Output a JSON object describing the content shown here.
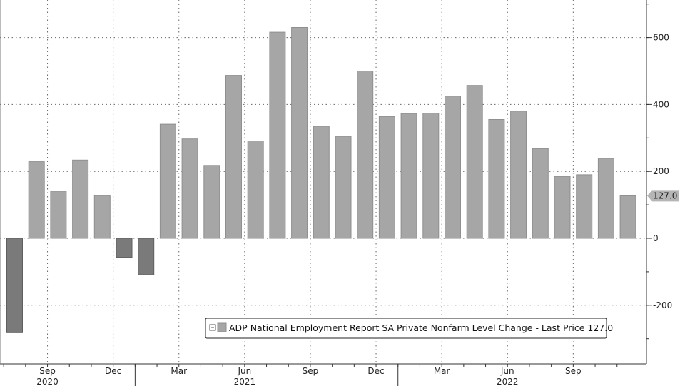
{
  "chart_data": {
    "type": "bar",
    "title": "",
    "xlabel": "",
    "ylabel": "",
    "ylim": [
      -370,
      700
    ],
    "y_ticks": [
      600,
      400,
      200,
      0,
      -200
    ],
    "y_tick_labels": [
      "600",
      "400",
      "200",
      "0",
      "-200"
    ],
    "grid": true,
    "legend_position": "bottom-right",
    "categories": [
      "2020-07",
      "2020-08",
      "2020-09",
      "2020-10",
      "2020-11",
      "2020-12",
      "2021-01",
      "2021-02",
      "2021-03",
      "2021-04",
      "2021-05",
      "2021-06",
      "2021-07",
      "2021-08",
      "2021-09",
      "2021-10",
      "2021-11",
      "2021-12",
      "2022-01",
      "2022-02",
      "2022-03",
      "2022-04",
      "2022-05",
      "2022-06",
      "2022-07",
      "2022-08",
      "2022-09",
      "2022-10",
      "2022-11"
    ],
    "series": [
      {
        "name": "ADP National Employment Report SA Private Nonfarm Level Change - Last Price 127.0",
        "values": [
          -282,
          229,
          141,
          234,
          128,
          -57,
          -109,
          341,
          297,
          218,
          487,
          291,
          616,
          630,
          335,
          305,
          500,
          364,
          373,
          374,
          425,
          457,
          355,
          380,
          268,
          185,
          190,
          239,
          127
        ]
      }
    ],
    "x_month_labels": [
      {
        "label": "Sep",
        "category": "2020-09"
      },
      {
        "label": "Dec",
        "category": "2020-12"
      },
      {
        "label": "Mar",
        "category": "2021-03"
      },
      {
        "label": "Jun",
        "category": "2021-06"
      },
      {
        "label": "Sep",
        "category": "2021-09"
      },
      {
        "label": "Dec",
        "category": "2021-12"
      },
      {
        "label": "Mar",
        "category": "2022-03"
      },
      {
        "label": "Jun",
        "category": "2022-06"
      },
      {
        "label": "Sep",
        "category": "2022-09"
      }
    ],
    "x_year_labels": [
      {
        "label": "2020",
        "category": "2020-09"
      },
      {
        "label": "2021",
        "category": "2021-06"
      },
      {
        "label": "2022",
        "category": "2022-06"
      }
    ],
    "last_price_label": "127.0",
    "last_price_value": 127.0,
    "legend_text": "ADP National Employment Report SA Private Nonfarm Level Change - Last Price 127.0",
    "colors": {
      "bar_positive": "#a6a6a6",
      "bar_positive_edge": "#8f8f8f",
      "bar_negative": "#7a7a7a",
      "bar_negative_edge": "#5e5e5e",
      "grid": "#666666",
      "axis": "#333333",
      "background": "#ffffff",
      "price_tag": "#b5b5b5"
    }
  }
}
